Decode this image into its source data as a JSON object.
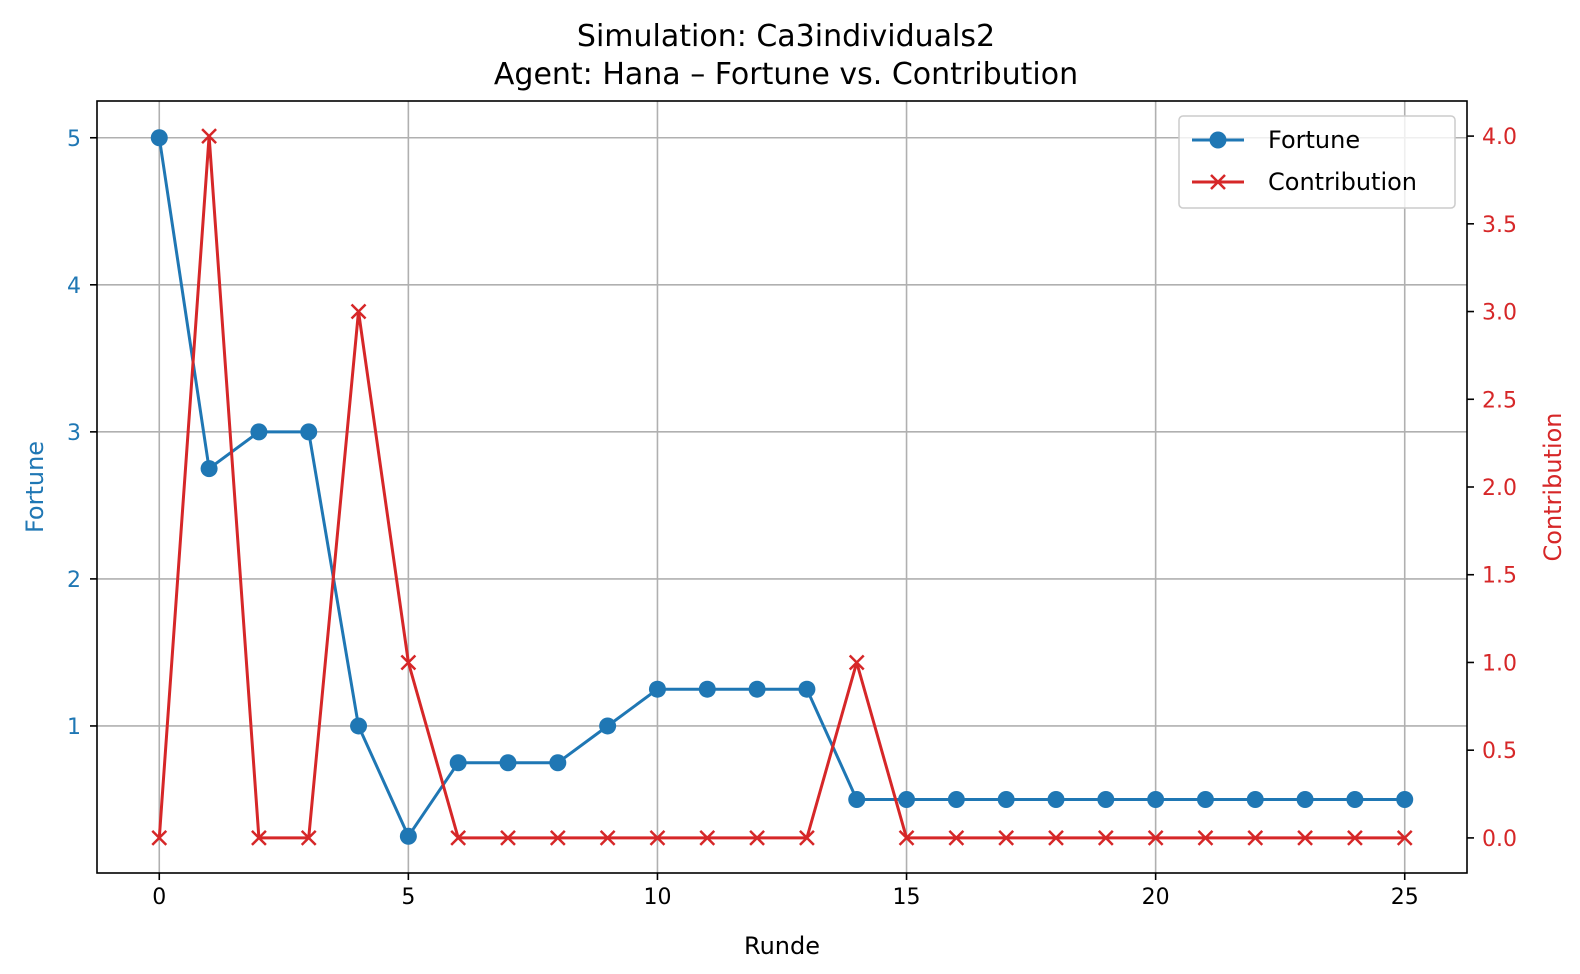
{
  "chart_data": {
    "type": "line",
    "title": "Simulation: Ca3individuals2",
    "subtitle": "Agent: Hana – Fortune vs. Contribution",
    "xlabel": "Runde",
    "ylabel_left": "Fortune",
    "ylabel_right": "Contribution",
    "xlim": [
      -1.25,
      26.25
    ],
    "ylim_left": [
      0.0,
      5.25
    ],
    "ylim_right": [
      -0.2,
      4.2
    ],
    "x_ticks": [
      0,
      5,
      10,
      15,
      20,
      25
    ],
    "y_left_ticks": [
      1,
      2,
      3,
      4,
      5
    ],
    "y_right_ticks": [
      "0.0",
      "0.5",
      "1.0",
      "1.5",
      "2.0",
      "2.5",
      "3.0",
      "3.5",
      "4.0"
    ],
    "grid": true,
    "legend_position": "top-right",
    "x": [
      0,
      1,
      2,
      3,
      4,
      5,
      6,
      7,
      8,
      9,
      10,
      11,
      12,
      13,
      14,
      15,
      16,
      17,
      18,
      19,
      20,
      21,
      22,
      23,
      24,
      25
    ],
    "series": [
      {
        "name": "Fortune",
        "axis": "left",
        "marker": "circle",
        "color": "#1f77b4",
        "values": [
          5,
          2.75,
          3,
          3,
          1,
          0.25,
          0.75,
          0.75,
          0.75,
          1,
          1.25,
          1.25,
          1.25,
          1.25,
          0.5,
          0.5,
          0.5,
          0.5,
          0.5,
          0.5,
          0.5,
          0.5,
          0.5,
          0.5,
          0.5,
          0.5
        ]
      },
      {
        "name": "Contribution",
        "axis": "right",
        "marker": "x",
        "color": "#d62728",
        "values": [
          0,
          4,
          0,
          0,
          3,
          1,
          0,
          0,
          0,
          0,
          0,
          0,
          0,
          0,
          1,
          0,
          0,
          0,
          0,
          0,
          0,
          0,
          0,
          0,
          0,
          0
        ]
      }
    ]
  }
}
